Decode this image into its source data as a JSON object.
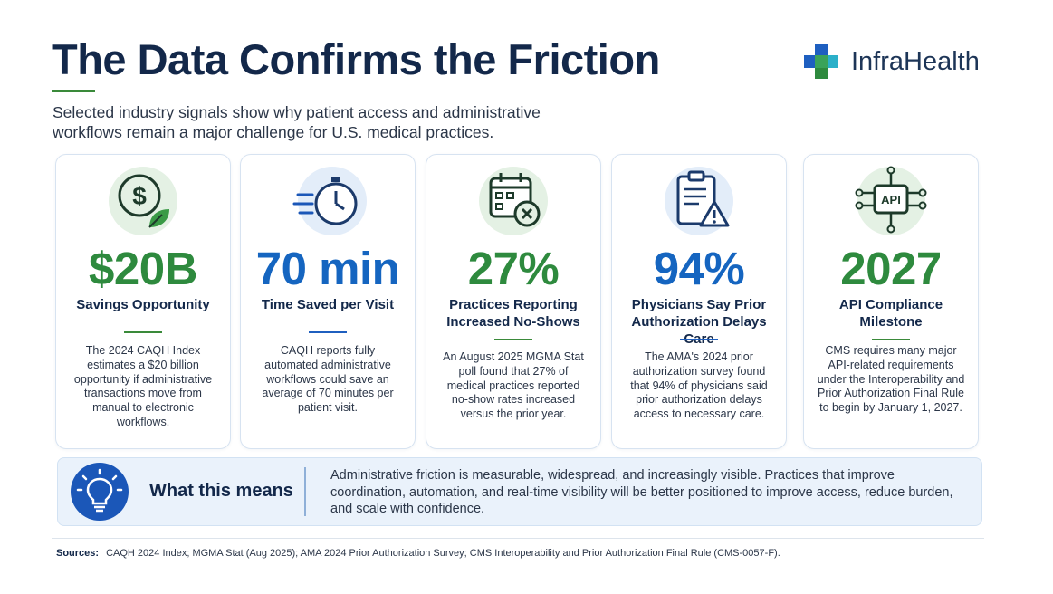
{
  "header": {
    "title": "The Data Confirms the Friction",
    "subtitle": "Selected industry signals show why patient access and administrative workflows remain a major challenge for U.S. medical practices.",
    "logo_text": "InfraHealth"
  },
  "colors": {
    "green": "#2e8a3e",
    "blue": "#1565c0",
    "navy": "#13284a"
  },
  "cards": [
    {
      "icon": "dollar-plant-icon",
      "stat": "$20B",
      "label": "Savings Opportunity",
      "desc": "The 2024 CAQH Index estimates a $20 billion opportunity if administrative transactions move from manual to electronic workflows."
    },
    {
      "icon": "stopwatch-icon",
      "stat": "70 min",
      "label": "Time Saved per Visit",
      "desc": "CAQH reports fully automated administrative workflows could save an average of 70 minutes per patient visit."
    },
    {
      "icon": "calendar-x-icon",
      "stat": "27%",
      "label": "Practices Reporting Increased No-Shows",
      "desc": "An August 2025 MGMA Stat poll found that 27% of medical practices reported no-show rates increased versus the prior year."
    },
    {
      "icon": "clipboard-warning-icon",
      "stat": "94%",
      "label": "Physicians Say Prior Authorization Delays Care",
      "desc": "The AMA's 2024 prior authorization survey found that 94% of physicians said prior authorization delays access to necessary care."
    },
    {
      "icon": "api-chip-icon",
      "stat": "2027",
      "label": "API Compliance Milestone",
      "desc": "CMS requires many major API-related requirements under the Interoperability and Prior Authorization Final Rule to begin by January 1, 2027."
    }
  ],
  "meaning": {
    "icon": "lightbulb-icon",
    "title": "What this means",
    "text": "Administrative friction is measurable, widespread, and increasingly visible. Practices that improve coordination, automation, and real-time visibility will be better positioned to improve access, reduce burden, and scale with confidence."
  },
  "sources": {
    "label": "Sources:",
    "text": "CAQH 2024 Index; MGMA Stat (Aug 2025); AMA 2024 Prior Authorization Survey; CMS Interoperability and Prior Authorization Final Rule (CMS-0057-F)."
  }
}
